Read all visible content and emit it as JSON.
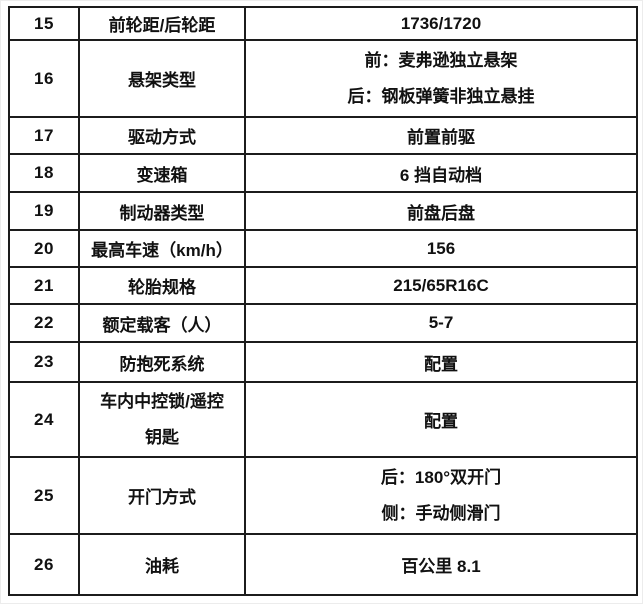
{
  "table": {
    "description": "vehicle-specifications-table",
    "columns": [
      "row_number",
      "spec_name",
      "spec_value"
    ],
    "text_color": "#111111",
    "border_color": "#1c1c1c",
    "rows": [
      {
        "num": "15",
        "label": "前轮距/后轮距",
        "value": "1736/1720"
      },
      {
        "num": "16",
        "label": "悬架类型",
        "value": "前：麦弗逊独立悬架",
        "value2": "后：钢板弹簧非独立悬挂"
      },
      {
        "num": "17",
        "label": "驱动方式",
        "value": "前置前驱"
      },
      {
        "num": "18",
        "label": "变速箱",
        "value": "6 挡自动档"
      },
      {
        "num": "19",
        "label": "制动器类型",
        "value": "前盘后盘"
      },
      {
        "num": "20",
        "label": "最高车速（km/h）",
        "value": "156"
      },
      {
        "num": "21",
        "label": "轮胎规格",
        "value": "215/65R16C"
      },
      {
        "num": "22",
        "label": "额定载客（人）",
        "value": "5-7"
      },
      {
        "num": "23",
        "label": "防抱死系统",
        "value": "配置"
      },
      {
        "num": "24",
        "label": "车内中控锁/遥控",
        "label2": "钥匙",
        "value": "配置"
      },
      {
        "num": "25",
        "label": "开门方式",
        "value": "后：180°双开门",
        "value2": "侧：手动侧滑门"
      },
      {
        "num": "26",
        "label": "油耗",
        "value": "百公里 8.1"
      }
    ]
  }
}
